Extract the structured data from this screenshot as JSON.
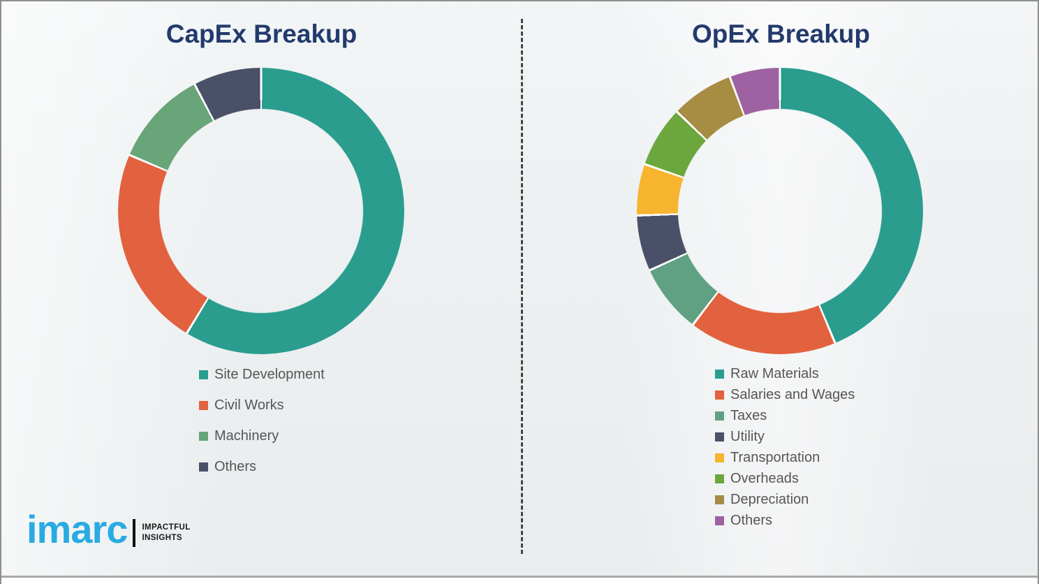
{
  "page": {
    "background_color": "#f3f4f5",
    "border_color": "#8f8f8f",
    "divider_color": "#444444",
    "bottom_bar_color": "#a8a8a8"
  },
  "chart_data": [
    {
      "type": "donut",
      "title": "CapEx Breakup",
      "categories": [
        "Site Development",
        "Civil Works",
        "Machinery",
        "Others"
      ],
      "values": [
        58.7,
        22.7,
        10.9,
        7.7
      ],
      "values_are_estimated_shares_pct": true,
      "data_labels_shown": false,
      "colors": [
        "#2A9D8F",
        "#E2613E",
        "#68A578",
        "#4A5068"
      ],
      "segment_gap_color": "#ffffff",
      "start_angle_deg": 0,
      "direction": "clockwise",
      "hole_ratio": 0.71,
      "legend_position": "below-left",
      "title_color": "#233A6C",
      "legend_text_color": "#565656"
    },
    {
      "type": "donut",
      "title": "OpEx Breakup",
      "categories": [
        "Raw Materials",
        "Salaries and Wages",
        "Taxes",
        "Utility",
        "Transportation",
        "Overheads",
        "Depreciation",
        "Others"
      ],
      "values": [
        43.7,
        16.7,
        7.8,
        6.3,
        5.8,
        6.9,
        7.1,
        5.7
      ],
      "values_are_estimated_shares_pct": true,
      "data_labels_shown": false,
      "colors": [
        "#2A9D8F",
        "#E2613E",
        "#5FA182",
        "#4A5068",
        "#F6B42F",
        "#6CA73E",
        "#A78C43",
        "#9E62A2"
      ],
      "segment_gap_color": "#ffffff",
      "start_angle_deg": 0,
      "direction": "clockwise",
      "hole_ratio": 0.71,
      "legend_position": "below-left",
      "title_color": "#233A6C",
      "legend_text_color": "#565656"
    }
  ],
  "logo": {
    "brand": "imarc",
    "tagline": [
      "IMPACTFUL",
      "INSIGHTS"
    ],
    "brand_color": "#29ABE2",
    "tagline_color": "#171717"
  }
}
